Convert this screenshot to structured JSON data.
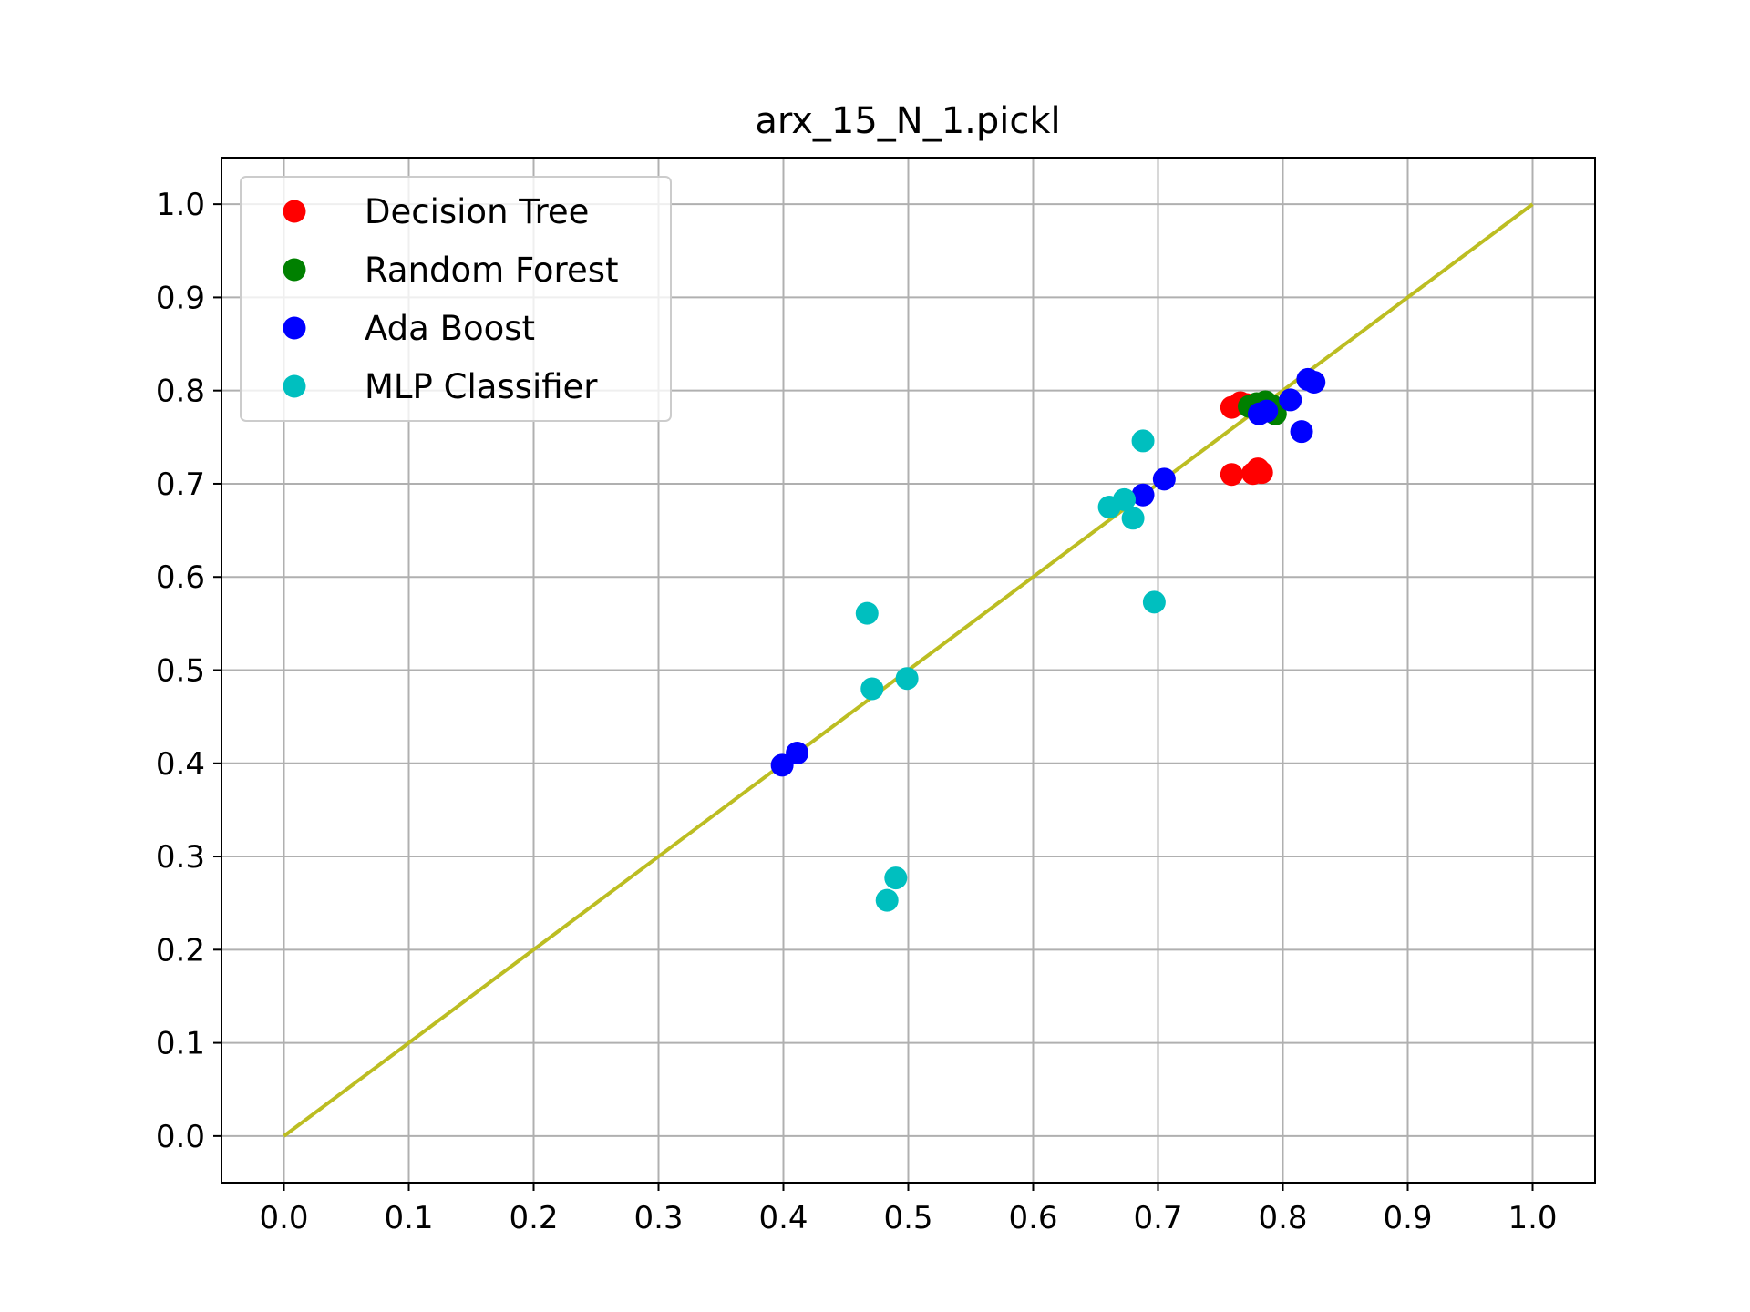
{
  "chart_data": {
    "type": "scatter",
    "title": "arx_15_N_1.pickl",
    "xlabel": "",
    "ylabel": "",
    "xlim": [
      -0.05,
      1.05
    ],
    "ylim": [
      -0.05,
      1.05
    ],
    "xticks": [
      "0.0",
      "0.1",
      "0.2",
      "0.3",
      "0.4",
      "0.5",
      "0.6",
      "0.7",
      "0.8",
      "0.9",
      "1.0"
    ],
    "yticks": [
      "0.0",
      "0.1",
      "0.2",
      "0.3",
      "0.4",
      "0.5",
      "0.6",
      "0.7",
      "0.8",
      "0.9",
      "1.0"
    ],
    "grid": true,
    "legend_position": "top-left",
    "reference_line": {
      "x": [
        0,
        1
      ],
      "y": [
        0,
        1
      ],
      "color": "#bcbd22"
    },
    "series": [
      {
        "name": "Decision Tree",
        "color": "#ff0000",
        "points": [
          [
            0.759,
            0.782
          ],
          [
            0.766,
            0.787
          ],
          [
            0.771,
            0.785
          ],
          [
            0.776,
            0.783
          ],
          [
            0.759,
            0.71
          ],
          [
            0.776,
            0.711
          ],
          [
            0.78,
            0.716
          ],
          [
            0.783,
            0.712
          ]
        ]
      },
      {
        "name": "Random Forest",
        "color": "#008000",
        "points": [
          [
            0.773,
            0.783
          ],
          [
            0.779,
            0.786
          ],
          [
            0.786,
            0.788
          ],
          [
            0.791,
            0.784
          ],
          [
            0.794,
            0.775
          ],
          [
            0.784,
            0.782
          ]
        ]
      },
      {
        "name": "Ada Boost",
        "color": "#0000ff",
        "points": [
          [
            0.399,
            0.398
          ],
          [
            0.411,
            0.411
          ],
          [
            0.688,
            0.688
          ],
          [
            0.705,
            0.705
          ],
          [
            0.781,
            0.775
          ],
          [
            0.787,
            0.778
          ],
          [
            0.806,
            0.79
          ],
          [
            0.815,
            0.756
          ],
          [
            0.82,
            0.812
          ],
          [
            0.825,
            0.809
          ]
        ]
      },
      {
        "name": "MLP Classifier",
        "color": "#00bfbf",
        "points": [
          [
            0.467,
            0.561
          ],
          [
            0.471,
            0.48
          ],
          [
            0.499,
            0.491
          ],
          [
            0.483,
            0.253
          ],
          [
            0.49,
            0.277
          ],
          [
            0.661,
            0.675
          ],
          [
            0.673,
            0.683
          ],
          [
            0.68,
            0.663
          ],
          [
            0.688,
            0.746
          ],
          [
            0.697,
            0.573
          ]
        ]
      }
    ]
  }
}
